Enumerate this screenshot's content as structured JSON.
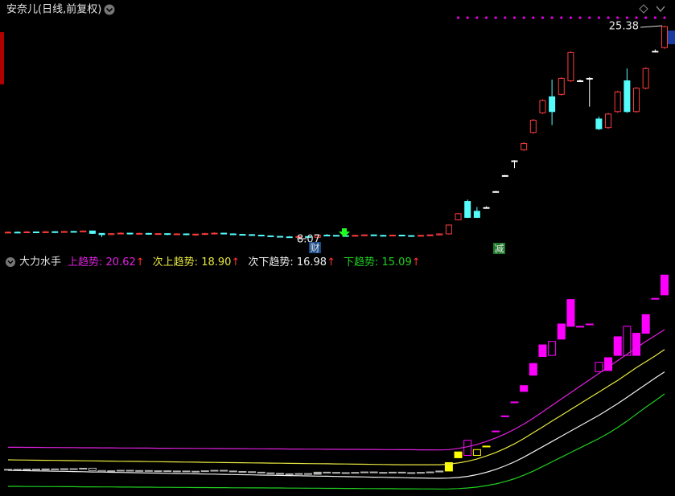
{
  "chart_data": [
    {
      "type": "candlestick",
      "title": "安奈儿(日线,前复权)",
      "open": [
        8.55,
        8.6,
        8.58,
        8.62,
        8.56,
        8.64,
        8.58,
        8.66,
        8.62,
        8.7,
        8.5,
        8.4,
        8.48,
        8.52,
        8.46,
        8.5,
        8.44,
        8.48,
        8.42,
        8.46,
        8.4,
        8.44,
        8.48,
        8.52,
        8.46,
        8.42,
        8.4,
        8.36,
        8.3,
        8.26,
        8.22,
        8.2,
        8.24,
        8.18,
        8.36,
        8.34,
        8.32,
        8.3,
        8.34,
        8.38,
        8.34,
        8.32,
        8.36,
        8.32,
        8.3,
        8.34,
        8.38,
        8.46,
        9.6,
        11.1,
        10.3,
        10.6,
        11.9,
        13.2,
        14.4,
        15.3,
        16.7,
        18.3,
        19.6,
        19.8,
        20.9,
        20.9,
        21.1,
        17.8,
        17.1,
        18.4,
        20.9,
        18.4,
        20.3,
        23.3,
        23.6
      ],
      "high": [
        8.65,
        8.66,
        8.7,
        8.66,
        8.7,
        8.68,
        8.72,
        8.7,
        8.74,
        8.72,
        8.52,
        8.52,
        8.58,
        8.56,
        8.56,
        8.54,
        8.52,
        8.52,
        8.5,
        8.5,
        8.48,
        8.55,
        8.58,
        8.56,
        8.5,
        8.46,
        8.44,
        8.4,
        8.34,
        8.3,
        8.28,
        8.3,
        8.28,
        8.42,
        8.45,
        8.38,
        8.36,
        8.38,
        8.42,
        8.42,
        8.38,
        8.4,
        8.4,
        8.36,
        8.38,
        8.42,
        8.5,
        9.22,
        10.15,
        11.25,
        10.65,
        10.7,
        11.95,
        13.25,
        14.45,
        15.9,
        17.8,
        19.4,
        21.0,
        21.2,
        23.3,
        21.0,
        21.2,
        18.0,
        18.3,
        20.1,
        21.9,
        20.4,
        22.0,
        23.45,
        25.38
      ],
      "low": [
        8.5,
        8.52,
        8.55,
        8.52,
        8.54,
        8.52,
        8.55,
        8.58,
        8.6,
        8.45,
        8.2,
        8.36,
        8.44,
        8.4,
        8.4,
        8.38,
        8.4,
        8.36,
        8.38,
        8.35,
        8.3,
        8.4,
        8.44,
        8.42,
        8.38,
        8.36,
        8.3,
        8.26,
        8.2,
        8.18,
        8.14,
        8.1,
        8.07,
        8.15,
        8.3,
        8.28,
        8.26,
        8.26,
        8.3,
        8.3,
        8.28,
        8.28,
        8.28,
        8.26,
        8.26,
        8.3,
        8.34,
        8.4,
        9.55,
        9.75,
        9.75,
        10.55,
        11.85,
        13.15,
        13.8,
        15.2,
        16.6,
        18.2,
        17.3,
        19.7,
        20.8,
        20.85,
        18.8,
        16.9,
        17.0,
        18.3,
        18.3,
        18.3,
        20.2,
        23.2,
        23.5
      ],
      "close": [
        8.6,
        8.58,
        8.62,
        8.56,
        8.64,
        8.58,
        8.66,
        8.62,
        8.7,
        8.5,
        8.4,
        8.48,
        8.52,
        8.46,
        8.5,
        8.44,
        8.48,
        8.42,
        8.46,
        8.4,
        8.44,
        8.48,
        8.52,
        8.46,
        8.42,
        8.4,
        8.36,
        8.3,
        8.26,
        8.22,
        8.2,
        8.24,
        8.18,
        8.36,
        8.34,
        8.32,
        8.3,
        8.34,
        8.38,
        8.34,
        8.32,
        8.36,
        8.32,
        8.3,
        8.34,
        8.38,
        8.46,
        9.18,
        10.1,
        9.8,
        9.8,
        10.6,
        11.9,
        13.2,
        14.4,
        15.8,
        17.7,
        19.3,
        18.4,
        21.1,
        23.2,
        20.9,
        21.1,
        17.0,
        18.2,
        20.0,
        18.4,
        20.3,
        21.9,
        23.3,
        25.3
      ],
      "ylim": [
        6.89,
        26.16
      ],
      "up_color": "#ff3c3c",
      "down_color": "#54fcfc",
      "flat_color": "#ffffff",
      "badges": [
        "财",
        "减"
      ]
    },
    {
      "type": "indicator",
      "title": "大力水手",
      "legend_separator": ": ",
      "legend_arrow": "↑",
      "ylim": [
        6.45,
        25.8
      ],
      "bar_colors": [
        "#ff00ff",
        "#ffff00",
        "#b4b4b4"
      ],
      "series": [
        {
          "name": "上趋势",
          "color": "#e020e0",
          "latest_label": "20.62",
          "values": [
            10.5,
            10.5,
            10.49,
            10.49,
            10.48,
            10.48,
            10.47,
            10.47,
            10.46,
            10.46,
            10.45,
            10.45,
            10.44,
            10.44,
            10.43,
            10.43,
            10.42,
            10.42,
            10.41,
            10.41,
            10.4,
            10.4,
            10.39,
            10.39,
            10.38,
            10.38,
            10.37,
            10.37,
            10.36,
            10.36,
            10.35,
            10.35,
            10.34,
            10.34,
            10.33,
            10.33,
            10.32,
            10.32,
            10.31,
            10.31,
            10.3,
            10.3,
            10.29,
            10.29,
            10.28,
            10.28,
            10.27,
            10.3,
            10.4,
            10.55,
            10.75,
            11.0,
            11.3,
            11.65,
            12.05,
            12.5,
            13.0,
            13.55,
            14.1,
            14.65,
            15.2,
            15.75,
            16.3,
            16.85,
            17.4,
            17.95,
            18.5,
            19.05,
            19.6,
            20.1,
            20.62
          ]
        },
        {
          "name": "次上趋势",
          "color": "#e8e840",
          "latest_label": "18.90",
          "values": [
            9.42,
            9.41,
            9.4,
            9.39,
            9.38,
            9.37,
            9.36,
            9.35,
            9.34,
            9.33,
            9.32,
            9.31,
            9.3,
            9.29,
            9.28,
            9.27,
            9.26,
            9.25,
            9.24,
            9.23,
            9.22,
            9.21,
            9.2,
            9.19,
            9.18,
            9.17,
            9.16,
            9.15,
            9.14,
            9.13,
            9.12,
            9.11,
            9.1,
            9.09,
            9.08,
            9.07,
            9.06,
            9.05,
            9.04,
            9.03,
            9.02,
            9.01,
            9.0,
            9.0,
            9.0,
            9.0,
            9.0,
            9.05,
            9.15,
            9.3,
            9.5,
            9.75,
            10.05,
            10.4,
            10.8,
            11.25,
            11.75,
            12.25,
            12.75,
            13.25,
            13.75,
            14.25,
            14.75,
            15.25,
            15.75,
            16.25,
            16.8,
            17.35,
            17.85,
            18.35,
            18.9
          ]
        },
        {
          "name": "次下趋势",
          "color": "#f0f0f0",
          "latest_label": "16.98",
          "values": [
            8.52,
            8.5,
            8.49,
            8.47,
            8.46,
            8.44,
            8.43,
            8.41,
            8.4,
            8.38,
            8.37,
            8.35,
            8.34,
            8.32,
            8.31,
            8.29,
            8.28,
            8.26,
            8.25,
            8.23,
            8.22,
            8.2,
            8.19,
            8.17,
            8.16,
            8.14,
            8.13,
            8.11,
            8.1,
            8.08,
            8.07,
            8.05,
            8.04,
            8.02,
            8.01,
            7.99,
            7.98,
            7.96,
            7.95,
            7.93,
            7.92,
            7.9,
            7.89,
            7.87,
            7.86,
            7.84,
            7.83,
            7.85,
            7.9,
            8.0,
            8.15,
            8.35,
            8.6,
            8.9,
            9.25,
            9.65,
            10.1,
            10.55,
            11.0,
            11.45,
            11.9,
            12.35,
            12.8,
            13.25,
            13.75,
            14.25,
            14.8,
            15.35,
            15.9,
            16.45,
            16.98
          ]
        },
        {
          "name": "下趋势",
          "color": "#20d020",
          "latest_label": "15.09",
          "values": [
            7.14,
            7.14,
            7.13,
            7.13,
            7.12,
            7.12,
            7.11,
            7.11,
            7.1,
            7.1,
            7.09,
            7.09,
            7.08,
            7.08,
            7.07,
            7.07,
            7.06,
            7.06,
            7.05,
            7.05,
            7.04,
            7.04,
            7.03,
            7.03,
            7.02,
            7.02,
            7.01,
            7.01,
            7.0,
            7.0,
            6.99,
            6.99,
            6.98,
            6.98,
            6.97,
            6.97,
            6.96,
            6.96,
            6.95,
            6.95,
            6.94,
            6.94,
            6.93,
            6.93,
            6.92,
            6.92,
            6.91,
            6.92,
            6.95,
            7.0,
            7.08,
            7.2,
            7.35,
            7.55,
            7.8,
            8.1,
            8.45,
            8.85,
            9.25,
            9.65,
            10.05,
            10.45,
            10.85,
            11.25,
            11.7,
            12.2,
            12.75,
            13.35,
            13.95,
            14.5,
            15.09
          ]
        }
      ]
    }
  ]
}
